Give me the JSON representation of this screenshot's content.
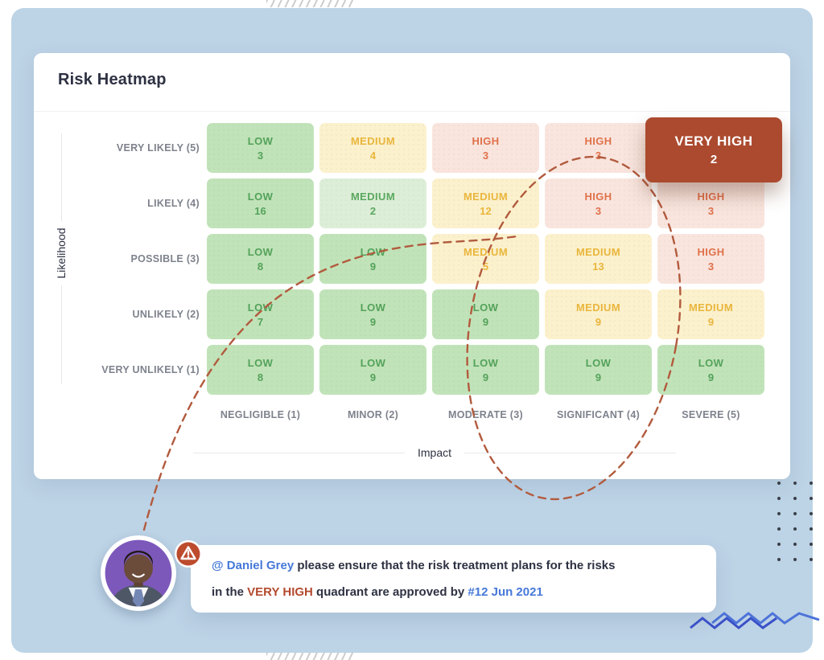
{
  "title": "Risk Heatmap",
  "chart_data": {
    "type": "heatmap",
    "title": "Risk Heatmap",
    "xlabel": "Impact",
    "ylabel": "Likelihood",
    "x_categories": [
      "NEGLIGIBLE (1)",
      "MINOR (2)",
      "MODERATE (3)",
      "SIGNIFICANT (4)",
      "SEVERE (5)"
    ],
    "y_categories": [
      "VERY LIKELY (5)",
      "LIKELY (4)",
      "POSSIBLE (3)",
      "UNLIKELY (2)",
      "VERY UNLIKELY (1)"
    ],
    "cells": [
      [
        {
          "risk": "LOW",
          "count": 3,
          "tone": "green"
        },
        {
          "risk": "MEDIUM",
          "count": 4,
          "tone": "yellow"
        },
        {
          "risk": "HIGH",
          "count": 3,
          "tone": "pink"
        },
        {
          "risk": "HIGH",
          "count": 3,
          "tone": "pink"
        },
        {
          "risk": "VERY HIGH",
          "count": 2,
          "tone": "brick"
        }
      ],
      [
        {
          "risk": "LOW",
          "count": 16,
          "tone": "green"
        },
        {
          "risk": "MEDIUM",
          "count": 2,
          "tone": "green_light"
        },
        {
          "risk": "MEDIUM",
          "count": 12,
          "tone": "yellow"
        },
        {
          "risk": "HIGH",
          "count": 3,
          "tone": "pink"
        },
        {
          "risk": "HIGH",
          "count": 3,
          "tone": "pink"
        }
      ],
      [
        {
          "risk": "LOW",
          "count": 8,
          "tone": "green"
        },
        {
          "risk": "LOW",
          "count": 9,
          "tone": "green"
        },
        {
          "risk": "MEDIUM",
          "count": 5,
          "tone": "yellow"
        },
        {
          "risk": "MEDIUM",
          "count": 13,
          "tone": "yellow"
        },
        {
          "risk": "HIGH",
          "count": 3,
          "tone": "pink"
        }
      ],
      [
        {
          "risk": "LOW",
          "count": 7,
          "tone": "green"
        },
        {
          "risk": "LOW",
          "count": 9,
          "tone": "green"
        },
        {
          "risk": "LOW",
          "count": 9,
          "tone": "green"
        },
        {
          "risk": "MEDIUM",
          "count": 9,
          "tone": "yellow"
        },
        {
          "risk": "MEDIUM",
          "count": 9,
          "tone": "yellow"
        }
      ],
      [
        {
          "risk": "LOW",
          "count": 8,
          "tone": "green"
        },
        {
          "risk": "LOW",
          "count": 9,
          "tone": "green"
        },
        {
          "risk": "LOW",
          "count": 9,
          "tone": "green"
        },
        {
          "risk": "LOW",
          "count": 9,
          "tone": "green"
        },
        {
          "risk": "LOW",
          "count": 9,
          "tone": "green"
        }
      ]
    ],
    "highlighted_cell": {
      "row": "VERY LIKELY (5)",
      "column": "SEVERE (5)",
      "risk": "VERY HIGH",
      "count": 2
    },
    "legend": "none",
    "grid": "off"
  },
  "comment": {
    "line1": {
      "mention": "@ Daniel Grey",
      "text": " please ensure that the risk treatment plans for the risks"
    },
    "line2": {
      "pre": "in the ",
      "highlight": "VERY HIGH",
      "mid": " quadrant are approved by ",
      "date": "#12 Jun 2021"
    }
  },
  "icons": {
    "alert": "warning-triangle-icon",
    "avatar": "user-avatar-photo",
    "decorations": [
      "dots-grid",
      "zigzag-lines",
      "diagonal-hatch"
    ]
  },
  "colors": {
    "panel_bg": "#bdd3e6",
    "card_bg": "#ffffff",
    "title_text": "#2d3142",
    "axis_label_text": "#2d3142",
    "tick_label_text": "#7d828c",
    "green_bg": "#c1e3b9",
    "green_text": "#53a25a",
    "green_light_bg": "#ddeed8",
    "green_light_text": "#5aa85f",
    "yellow_bg": "#fcf1cd",
    "yellow_text": "#e9b63c",
    "pink_bg": "#f9e5de",
    "pink_text": "#e0714b",
    "brick_bg": "#ab4a2f",
    "brick_text": "#ffffff",
    "dashed_annotation": "#b25b3e",
    "link_blue": "#4678d8",
    "risk_highlight": "#b34a2e",
    "comment_text": "#2d3142",
    "alert_icon_bg": "#bd4b2e",
    "avatar_bg": "#7d58bb",
    "zigzag_dark": "#3a50c8",
    "zigzag_light": "#4d73d8",
    "dots": "#3a3f48"
  }
}
